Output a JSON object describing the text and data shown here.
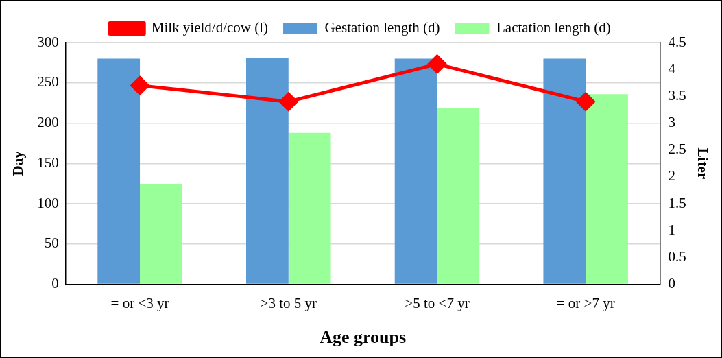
{
  "chart_data": {
    "type": "bar",
    "xlabel": "Age groups",
    "ylabel": "Day",
    "y2label": "Liter",
    "categories": [
      "= or <3 yr",
      ">3 to 5 yr",
      ">5 to <7 yr",
      "= or >7 yr"
    ],
    "series": [
      {
        "name": "Gestation length (d)",
        "color": "#5b9bd5",
        "values": [
          280,
          281,
          280,
          280
        ]
      },
      {
        "name": "Lactation length (d)",
        "color": "#99ff99",
        "values": [
          124,
          188,
          219,
          236
        ]
      },
      {
        "name": "Milk yield/d/cow (l)",
        "type": "line",
        "axis": "y2",
        "color": "#ff0000",
        "marker": "diamond",
        "values": [
          3.7,
          3.4,
          4.1,
          3.4
        ]
      }
    ],
    "ylim": [
      0,
      300
    ],
    "yticks": [
      0,
      50,
      100,
      150,
      200,
      250,
      300
    ],
    "y2lim": [
      0,
      4.5
    ],
    "y2ticks": [
      0,
      0.5,
      1,
      1.5,
      2,
      2.5,
      3,
      3.5,
      4,
      4.5
    ],
    "grid": "y",
    "legend": "top"
  }
}
